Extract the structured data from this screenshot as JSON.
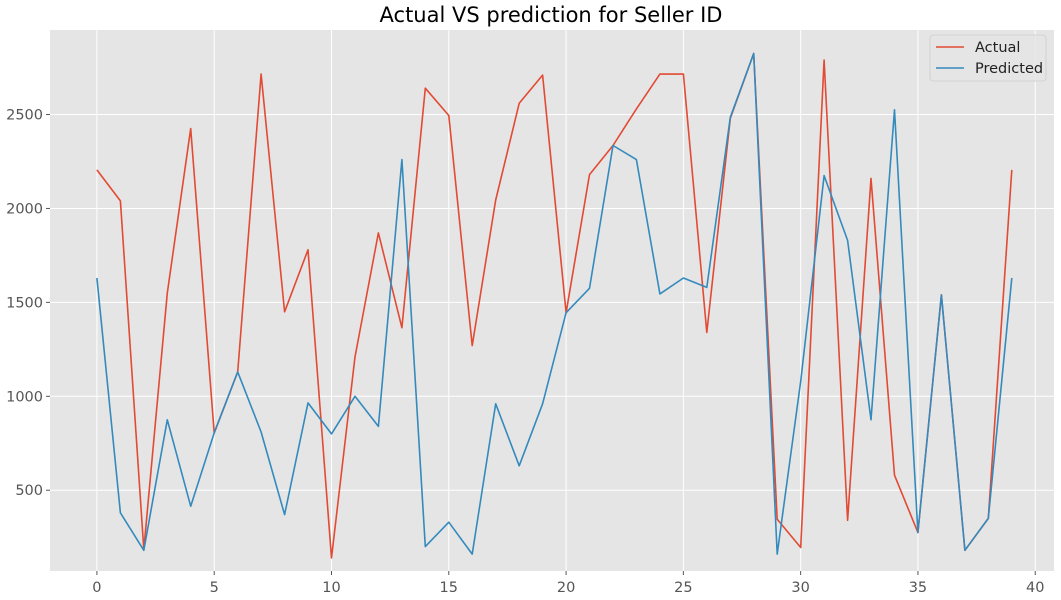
{
  "chart_data": {
    "type": "line",
    "title": "Actual VS prediction for Seller ID",
    "xlabel": "",
    "ylabel": "",
    "xlim": [
      -2,
      40.8
    ],
    "ylim": [
      70,
      2950
    ],
    "xticks": [
      0,
      5,
      10,
      15,
      20,
      25,
      30,
      35,
      40
    ],
    "xtick_labels": [
      "0",
      "5",
      "10",
      "15",
      "20",
      "25",
      "30",
      "35",
      "40"
    ],
    "yticks": [
      500,
      1000,
      1500,
      2000,
      2500
    ],
    "ytick_labels": [
      "500",
      "1000",
      "1500",
      "2000",
      "2500"
    ],
    "grid": true,
    "legend_position": "top-right",
    "x": [
      0,
      1,
      2,
      3,
      4,
      5,
      6,
      7,
      8,
      9,
      10,
      11,
      12,
      13,
      14,
      15,
      16,
      17,
      18,
      19,
      20,
      21,
      22,
      23,
      24,
      25,
      26,
      27,
      28,
      29,
      30,
      31,
      32,
      33,
      34,
      35,
      36,
      37,
      38,
      39
    ],
    "series": [
      {
        "name": "Actual",
        "color": "#e24a33",
        "values": [
          2205,
          2040,
          185,
          1550,
          2425,
          805,
          1130,
          2715,
          1450,
          1780,
          140,
          1210,
          1870,
          1365,
          2640,
          2495,
          1270,
          2045,
          2560,
          2710,
          1445,
          2180,
          2335,
          2530,
          2715,
          2715,
          1340,
          2480,
          2825,
          345,
          195,
          2790,
          340,
          2160,
          580,
          275,
          1540,
          180,
          350,
          2205
        ]
      },
      {
        "name": "Predicted",
        "color": "#348abd",
        "values": [
          1630,
          380,
          180,
          875,
          415,
          805,
          1130,
          810,
          370,
          965,
          800,
          1000,
          840,
          2260,
          200,
          330,
          160,
          960,
          630,
          960,
          1445,
          1575,
          2335,
          2260,
          1545,
          1630,
          1580,
          2485,
          2825,
          160,
          1080,
          2175,
          1830,
          875,
          2525,
          275,
          1540,
          180,
          350,
          1630
        ]
      }
    ]
  }
}
